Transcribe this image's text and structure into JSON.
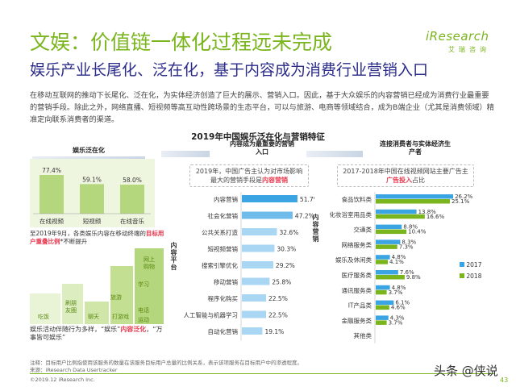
{
  "header": {
    "title": "文娱：价值链一体化过程远未完成",
    "subtitle": "娱乐产业长尾化、泛在化，基于内容成为消费行业营销入口",
    "logo_main": "iResearch",
    "logo_sub": "艾瑞咨询"
  },
  "intro_text": "在移动互联网的推动下长尾化、泛在化，为实体经济创造了巨大的展示、营销入口。因此，基于大众娱乐的内容营销已经成为消费行业最重要的营销手段。除此之外，网络直播、短视频等高互动性跨场景的生态平台，可以与旅游、电商等领域结合，成为B端企业（尤其是消费领域）精准定向联系消费者的渠道。",
  "chart_title": "2019年中国娱乐泛在化与营销特征",
  "stages": {
    "stage1": "娱乐泛在化",
    "stage2": "内容成为最重要的营销入口",
    "stage3": "连接消费者与实体经济生产者"
  },
  "left_panel": {
    "caption_pre": "至2019年9月，各类娱乐内容在移动终端的",
    "caption_hl": "目标用户重叠比例",
    "caption_post": "*不断提升",
    "activity_pre": "娱乐活动伴随行为多样，“娱乐”",
    "activity_hl": "内容泛化",
    "activity_post": "，“万事皆可娱乐”",
    "tags_row1": [
      "网上",
      "购物"
    ],
    "tags": [
      "吃饭",
      "聊天",
      "旅游",
      "打游戏",
      "电话",
      "运动",
      "学习",
      "刷朋友圈"
    ]
  },
  "middle_note": {
    "pre": "2019年，中国广告主认为对市场影响最大的营销手段是",
    "hl": "内容营销"
  },
  "right_note": {
    "pre": "2017-2018年中国在线视频网站主要广告主",
    "hl": "广告投入",
    "post": "占比"
  },
  "axis_labels": {
    "middle": "内容平台",
    "right": "内容营销"
  },
  "legend": {
    "s2017": "2017",
    "s2018": "2018"
  },
  "footer": {
    "note": "注释：目标用户比例指使用该服务的数量在该服务目标用户总量的比例关系，表示该项服务在目标用户中的渗透程度。",
    "source": "来源：iResearch Data Usertracker",
    "copyright": "©2019.12 iResearch Inc.",
    "watermark": "头条 @侠说",
    "page": "43"
  },
  "colors": {
    "green": "#7ab51d",
    "blue": "#2ea1e2",
    "navy": "#2b2b8a",
    "bar_light": "#9fd0f0",
    "bar_dark": "#3ba4e3",
    "red": "#e8384f"
  },
  "chart_data": [
    {
      "type": "bar",
      "title": "娱乐泛在化",
      "categories": [
        "在线视频",
        "短视频",
        "在线音乐"
      ],
      "values": [
        77.4,
        59.1,
        58.0
      ],
      "unit": "%",
      "ylim": [
        0,
        100
      ]
    },
    {
      "type": "bar",
      "orientation": "horizontal",
      "title": "2019年，中国广告主认为对市场影响最大的营销手段是内容营销",
      "categories": [
        "内容营销",
        "社会化营销",
        "公共关系打造",
        "短视频营销",
        "搜索引擎优化",
        "移动营销",
        "程序化购买",
        "人工智能与机器学习",
        "自动化营销"
      ],
      "values": [
        51.7,
        47.2,
        32.6,
        30.3,
        29.2,
        25.8,
        22.5,
        22.5,
        19.1
      ],
      "unit": "%",
      "xlim": [
        0,
        60
      ]
    },
    {
      "type": "bar",
      "orientation": "horizontal",
      "title": "2017-2018年中国在线视频网站主要广告主广告投入占比",
      "categories": [
        "食品饮料类",
        "化妆浴室用品类",
        "交通类",
        "网络服务类",
        "娱乐及休闲类",
        "医疗服务类",
        "通讯服务类",
        "IT产品类",
        "金融服务类",
        "其他类"
      ],
      "series": [
        {
          "name": "2017",
          "values": [
            26.2,
            13.8,
            8.8,
            8.3,
            4.8,
            7.6,
            4.8,
            6.1,
            4.3,
            0
          ]
        },
        {
          "name": "2018",
          "values": [
            25.1,
            16.6,
            10.4,
            7.3,
            4.1,
            9.8,
            3.7,
            4.6,
            3.7,
            0
          ]
        }
      ],
      "unit": "%",
      "xlim": [
        0,
        30
      ]
    }
  ]
}
